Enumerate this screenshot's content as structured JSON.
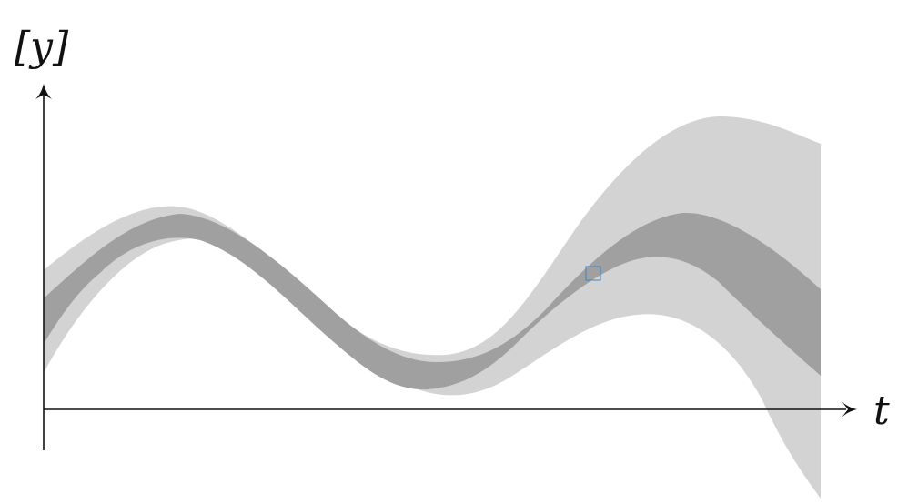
{
  "diagram": {
    "y_axis_label": "[y]",
    "x_axis_label": "t",
    "colors": {
      "outer_band": "#d3d3d3",
      "inner_band": "#a0a0a0",
      "axes": "#111111",
      "marker": "#3a86c8"
    },
    "marker_icon": "small-square-marker"
  }
}
